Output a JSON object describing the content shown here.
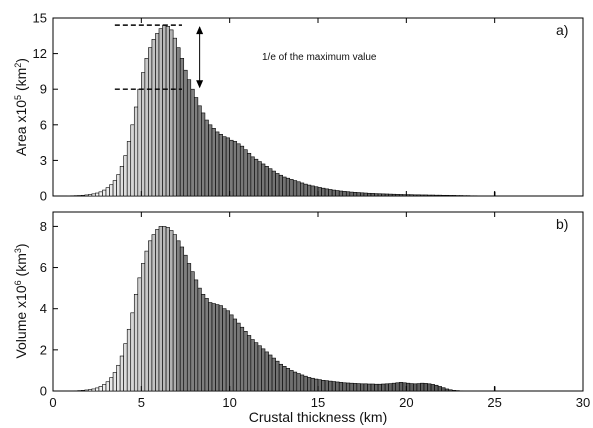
{
  "figure": {
    "xlabel": "Crustal thickness (km)",
    "annotation": "1/e of the maximum value"
  },
  "colors": {
    "bar_stroke": "#000000",
    "light_fill": "#f4f4f4",
    "dark_fill": "#555555",
    "axis": "#000000"
  },
  "chart_data": [
    {
      "type": "bar",
      "panel_label": "a)",
      "xlabel": "",
      "ylabel_main": "Area x10",
      "ylabel_exp": "5",
      "ylabel_unit_pre": " (km",
      "ylabel_unit_exp": "2",
      "ylabel_unit_post": ")",
      "xlim": [
        0,
        30
      ],
      "ylim": [
        0,
        15
      ],
      "xticks": [
        0,
        5,
        10,
        15,
        20,
        25,
        30
      ],
      "yticks": [
        0,
        3,
        6,
        9,
        12,
        15
      ],
      "bin_width": 0.2,
      "x_start": 0.8,
      "values": [
        0.01,
        0.02,
        0.03,
        0.04,
        0.06,
        0.09,
        0.13,
        0.18,
        0.25,
        0.35,
        0.5,
        0.7,
        0.95,
        1.3,
        1.8,
        2.5,
        3.4,
        4.6,
        6.0,
        7.5,
        9.0,
        10.4,
        11.6,
        12.5,
        13.2,
        13.7,
        14.1,
        14.4,
        14.3,
        14.0,
        13.3,
        12.5,
        11.6,
        10.6,
        9.8,
        9.0,
        8.3,
        7.6,
        7.0,
        6.4,
        6.0,
        5.7,
        5.4,
        5.2,
        5.0,
        4.9,
        4.7,
        4.6,
        4.4,
        4.2,
        3.9,
        3.6,
        3.3,
        3.1,
        2.9,
        2.7,
        2.5,
        2.3,
        2.1,
        1.9,
        1.75,
        1.6,
        1.5,
        1.4,
        1.3,
        1.2,
        1.1,
        1.0,
        0.92,
        0.85,
        0.78,
        0.72,
        0.66,
        0.6,
        0.55,
        0.5,
        0.46,
        0.42,
        0.39,
        0.36,
        0.33,
        0.31,
        0.29,
        0.27,
        0.25,
        0.23,
        0.22,
        0.2,
        0.19,
        0.18,
        0.17,
        0.16,
        0.15,
        0.14,
        0.13,
        0.12,
        0.12,
        0.11,
        0.1,
        0.1,
        0.09,
        0.09,
        0.08,
        0.08,
        0.07,
        0.07,
        0.06,
        0.06,
        0.05,
        0.05,
        0.04,
        0.04,
        0.03,
        0.03,
        0.02,
        0.02
      ],
      "dark_from_x": 7.0,
      "extra_marks": [
        {
          "x": 25.0,
          "value": 0.35
        }
      ],
      "reference_lines": [
        {
          "value": 14.4,
          "x_from": 3.5,
          "x_to": 7.3
        },
        {
          "value": 9.0,
          "x_from": 3.5,
          "x_to": 7.3
        }
      ],
      "arrow_x": 8.3
    },
    {
      "type": "bar",
      "panel_label": "b)",
      "xlabel": "Crustal thickness (km)",
      "ylabel_main": "Volume x10",
      "ylabel_exp": "6",
      "ylabel_unit_pre": " (km",
      "ylabel_unit_exp": "3",
      "ylabel_unit_post": ")",
      "xlim": [
        0,
        30
      ],
      "ylim": [
        0,
        8.7
      ],
      "xticks": [
        0,
        5,
        10,
        15,
        20,
        25,
        30
      ],
      "yticks": [
        0,
        2,
        4,
        6,
        8
      ],
      "bin_width": 0.2,
      "x_start": 1.2,
      "values": [
        0.01,
        0.02,
        0.03,
        0.05,
        0.07,
        0.1,
        0.15,
        0.22,
        0.32,
        0.45,
        0.65,
        0.9,
        1.25,
        1.7,
        2.3,
        3.0,
        3.8,
        4.7,
        5.5,
        6.2,
        6.8,
        7.3,
        7.6,
        7.85,
        8.0,
        8.0,
        7.95,
        7.8,
        7.6,
        7.3,
        7.0,
        6.6,
        6.2,
        5.8,
        5.4,
        5.0,
        4.7,
        4.5,
        4.3,
        4.25,
        4.2,
        4.15,
        4.0,
        3.9,
        3.7,
        3.5,
        3.3,
        3.1,
        2.9,
        2.7,
        2.5,
        2.35,
        2.2,
        2.05,
        1.9,
        1.75,
        1.6,
        1.45,
        1.3,
        1.2,
        1.1,
        1.0,
        0.92,
        0.85,
        0.78,
        0.72,
        0.66,
        0.62,
        0.58,
        0.55,
        0.52,
        0.5,
        0.48,
        0.46,
        0.44,
        0.42,
        0.4,
        0.39,
        0.38,
        0.37,
        0.36,
        0.35,
        0.35,
        0.34,
        0.34,
        0.33,
        0.33,
        0.34,
        0.35,
        0.36,
        0.38,
        0.4,
        0.42,
        0.4,
        0.38,
        0.36,
        0.35,
        0.36,
        0.38,
        0.37,
        0.35,
        0.32,
        0.28,
        0.22,
        0.16,
        0.1,
        0.06,
        0.03,
        0.02,
        0.01
      ],
      "dark_from_x": 7.0,
      "extra_marks": [
        {
          "x": 25.0,
          "value": 0.22
        }
      ],
      "reference_lines": [],
      "arrow_x": null
    }
  ]
}
